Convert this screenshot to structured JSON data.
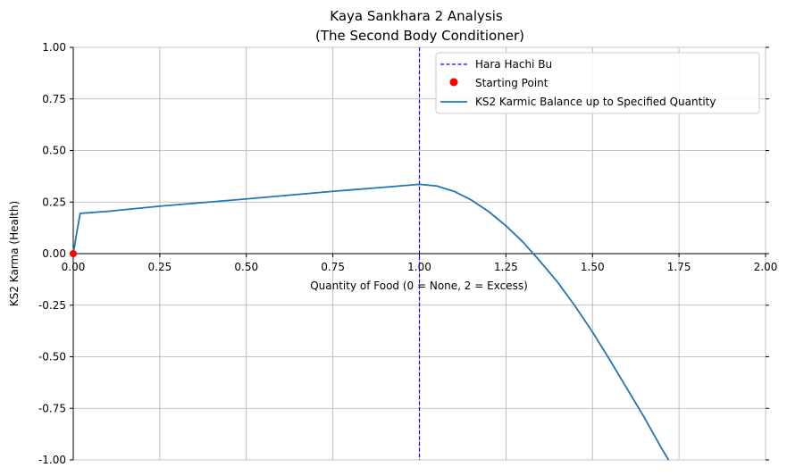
{
  "chart_data": {
    "type": "line",
    "title": "Kaya Sankhara 2 Analysis",
    "subtitle": "(The Second Body Conditioner)",
    "xlabel": "Quantity of Food (0 = None, 2 = Excess)",
    "ylabel": "KS2 Karma (Health)",
    "xlim": [
      0,
      2
    ],
    "ylim": [
      -1,
      1
    ],
    "xticks": [
      "0.00",
      "0.25",
      "0.50",
      "0.75",
      "1.00",
      "1.25",
      "1.50",
      "1.75",
      "2.00"
    ],
    "yticks": [
      "1.00",
      "0.75",
      "0.50",
      "0.25",
      "0.00",
      "-0.25",
      "-0.50",
      "-0.75",
      "-1.00"
    ],
    "xtick_values": [
      0,
      0.25,
      0.5,
      0.75,
      1,
      1.25,
      1.5,
      1.75,
      2
    ],
    "ytick_values": [
      1,
      0.75,
      0.5,
      0.25,
      0,
      -0.25,
      -0.5,
      -0.75,
      -1
    ],
    "grid": true,
    "legend_position": "top-right",
    "series": [
      {
        "name": "KS2 Karmic Balance up to Specified Quantity",
        "color": "#1f77b4",
        "x": [
          0,
          0.005,
          0.01,
          0.02,
          0.1,
          0.25,
          0.5,
          0.75,
          0.9,
          1.0,
          1.05,
          1.1,
          1.15,
          1.2,
          1.25,
          1.3,
          1.35,
          1.4,
          1.45,
          1.5,
          1.55,
          1.6,
          1.65,
          1.7,
          1.72
        ],
        "y": [
          0,
          0.05,
          0.1,
          0.195,
          0.205,
          0.23,
          0.265,
          0.302,
          0.322,
          0.336,
          0.328,
          0.302,
          0.26,
          0.204,
          0.135,
          0.055,
          -0.04,
          -0.14,
          -0.255,
          -0.38,
          -0.515,
          -0.655,
          -0.795,
          -0.945,
          -1.0
        ]
      }
    ],
    "vline": {
      "name": "Hara Hachi Bu",
      "x": 1.0,
      "color": "#0000ff"
    },
    "point": {
      "name": "Starting Point",
      "x": 0,
      "y": 0,
      "color": "#ff0000"
    }
  }
}
